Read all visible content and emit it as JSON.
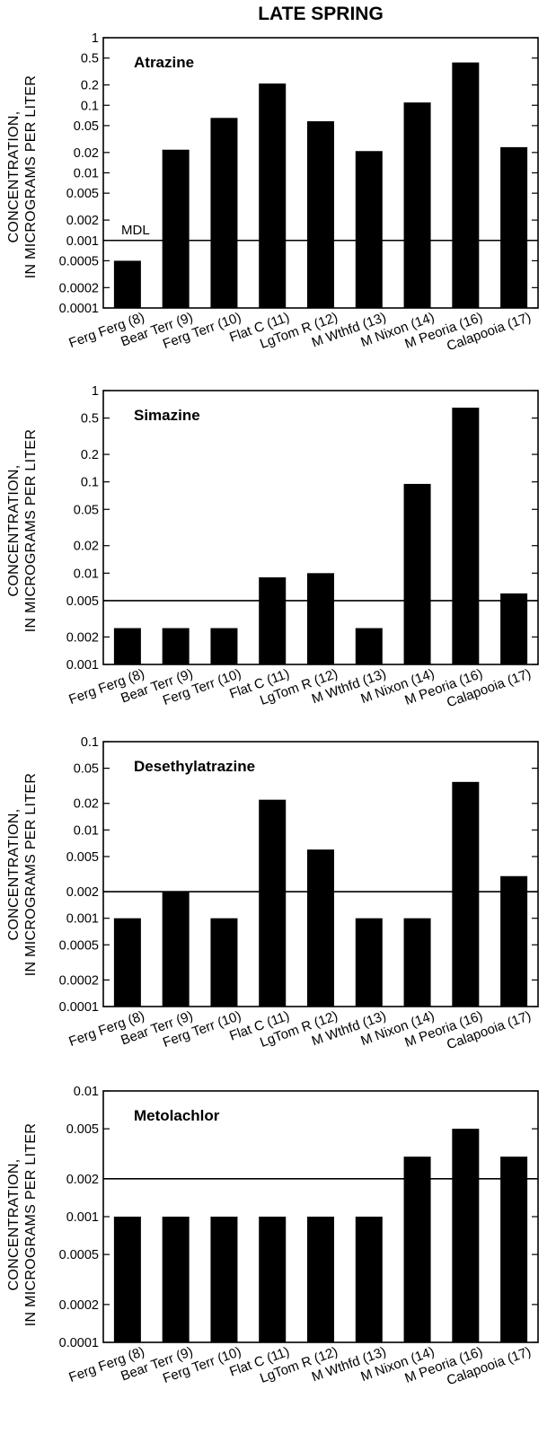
{
  "figure_title": "LATE SPRING",
  "y_axis_title_line1": "CONCENTRATION,",
  "y_axis_title_line2": "IN MICROGRAMS PER LITER",
  "chart_data": [
    {
      "type": "bar",
      "title": "Atrazine",
      "y_scale": "log",
      "ylim": [
        0.0001,
        1
      ],
      "yticks": [
        "1",
        "0.5",
        "0.2",
        "0.1",
        "0.05",
        "0.02",
        "0.01",
        "0.005",
        "0.002",
        "0.001",
        "0.0005",
        "0.0002",
        "0.0001"
      ],
      "categories": [
        "Ferg Ferg (8)",
        "Bear Terr (9)",
        "Ferg Terr (10)",
        "Flat C (11)",
        "LgTom R (12)",
        "M Wthfd (13)",
        "M Nixon (14)",
        "M Peoria (16)",
        "Calapooia (17)"
      ],
      "values": [
        0.0005,
        0.022,
        0.065,
        0.21,
        0.058,
        0.021,
        0.11,
        0.43,
        0.024
      ],
      "reference_line": {
        "value": 0.001,
        "label": "MDL"
      }
    },
    {
      "type": "bar",
      "title": "Simazine",
      "y_scale": "log",
      "ylim": [
        0.001,
        1
      ],
      "yticks": [
        "1",
        "0.5",
        "0.2",
        "0.1",
        "0.05",
        "0.02",
        "0.01",
        "0.005",
        "0.002",
        "0.001"
      ],
      "categories": [
        "Ferg Ferg (8)",
        "Bear Terr (9)",
        "Ferg Terr (10)",
        "Flat C (11)",
        "LgTom R (12)",
        "M Wthfd (13)",
        "M Nixon (14)",
        "M Peoria (16)",
        "Calapooia (17)"
      ],
      "values": [
        0.0025,
        0.0025,
        0.0025,
        0.009,
        0.01,
        0.0025,
        0.095,
        0.65,
        0.006
      ],
      "reference_line": {
        "value": 0.005,
        "label": ""
      }
    },
    {
      "type": "bar",
      "title": "Desethylatrazine",
      "y_scale": "log",
      "ylim": [
        0.0001,
        0.1
      ],
      "yticks": [
        "0.1",
        "0.05",
        "0.02",
        "0.01",
        "0.005",
        "0.002",
        "0.001",
        "0.0005",
        "0.0002",
        "0.0001"
      ],
      "categories": [
        "Ferg Ferg (8)",
        "Bear Terr (9)",
        "Ferg Terr (10)",
        "Flat C (11)",
        "LgTom R (12)",
        "M Wthfd (13)",
        "M Nixon (14)",
        "M Peoria (16)",
        "Calapooia (17)"
      ],
      "values": [
        0.001,
        0.002,
        0.001,
        0.022,
        0.006,
        0.001,
        0.001,
        0.035,
        0.003
      ],
      "reference_line": {
        "value": 0.002,
        "label": ""
      }
    },
    {
      "type": "bar",
      "title": "Metolachlor",
      "y_scale": "log",
      "ylim": [
        0.0001,
        0.01
      ],
      "yticks": [
        "0.01",
        "0.005",
        "0.002",
        "0.001",
        "0.0005",
        "0.0002",
        "0.0001"
      ],
      "categories": [
        "Ferg Ferg (8)",
        "Bear Terr (9)",
        "Ferg Terr (10)",
        "Flat C (11)",
        "LgTom R (12)",
        "M Wthfd (13)",
        "M Nixon (14)",
        "M Peoria (16)",
        "Calapooia (17)"
      ],
      "values": [
        0.001,
        0.001,
        0.001,
        0.001,
        0.001,
        0.001,
        0.003,
        0.005,
        0.003
      ],
      "reference_line": {
        "value": 0.002,
        "label": ""
      }
    }
  ]
}
